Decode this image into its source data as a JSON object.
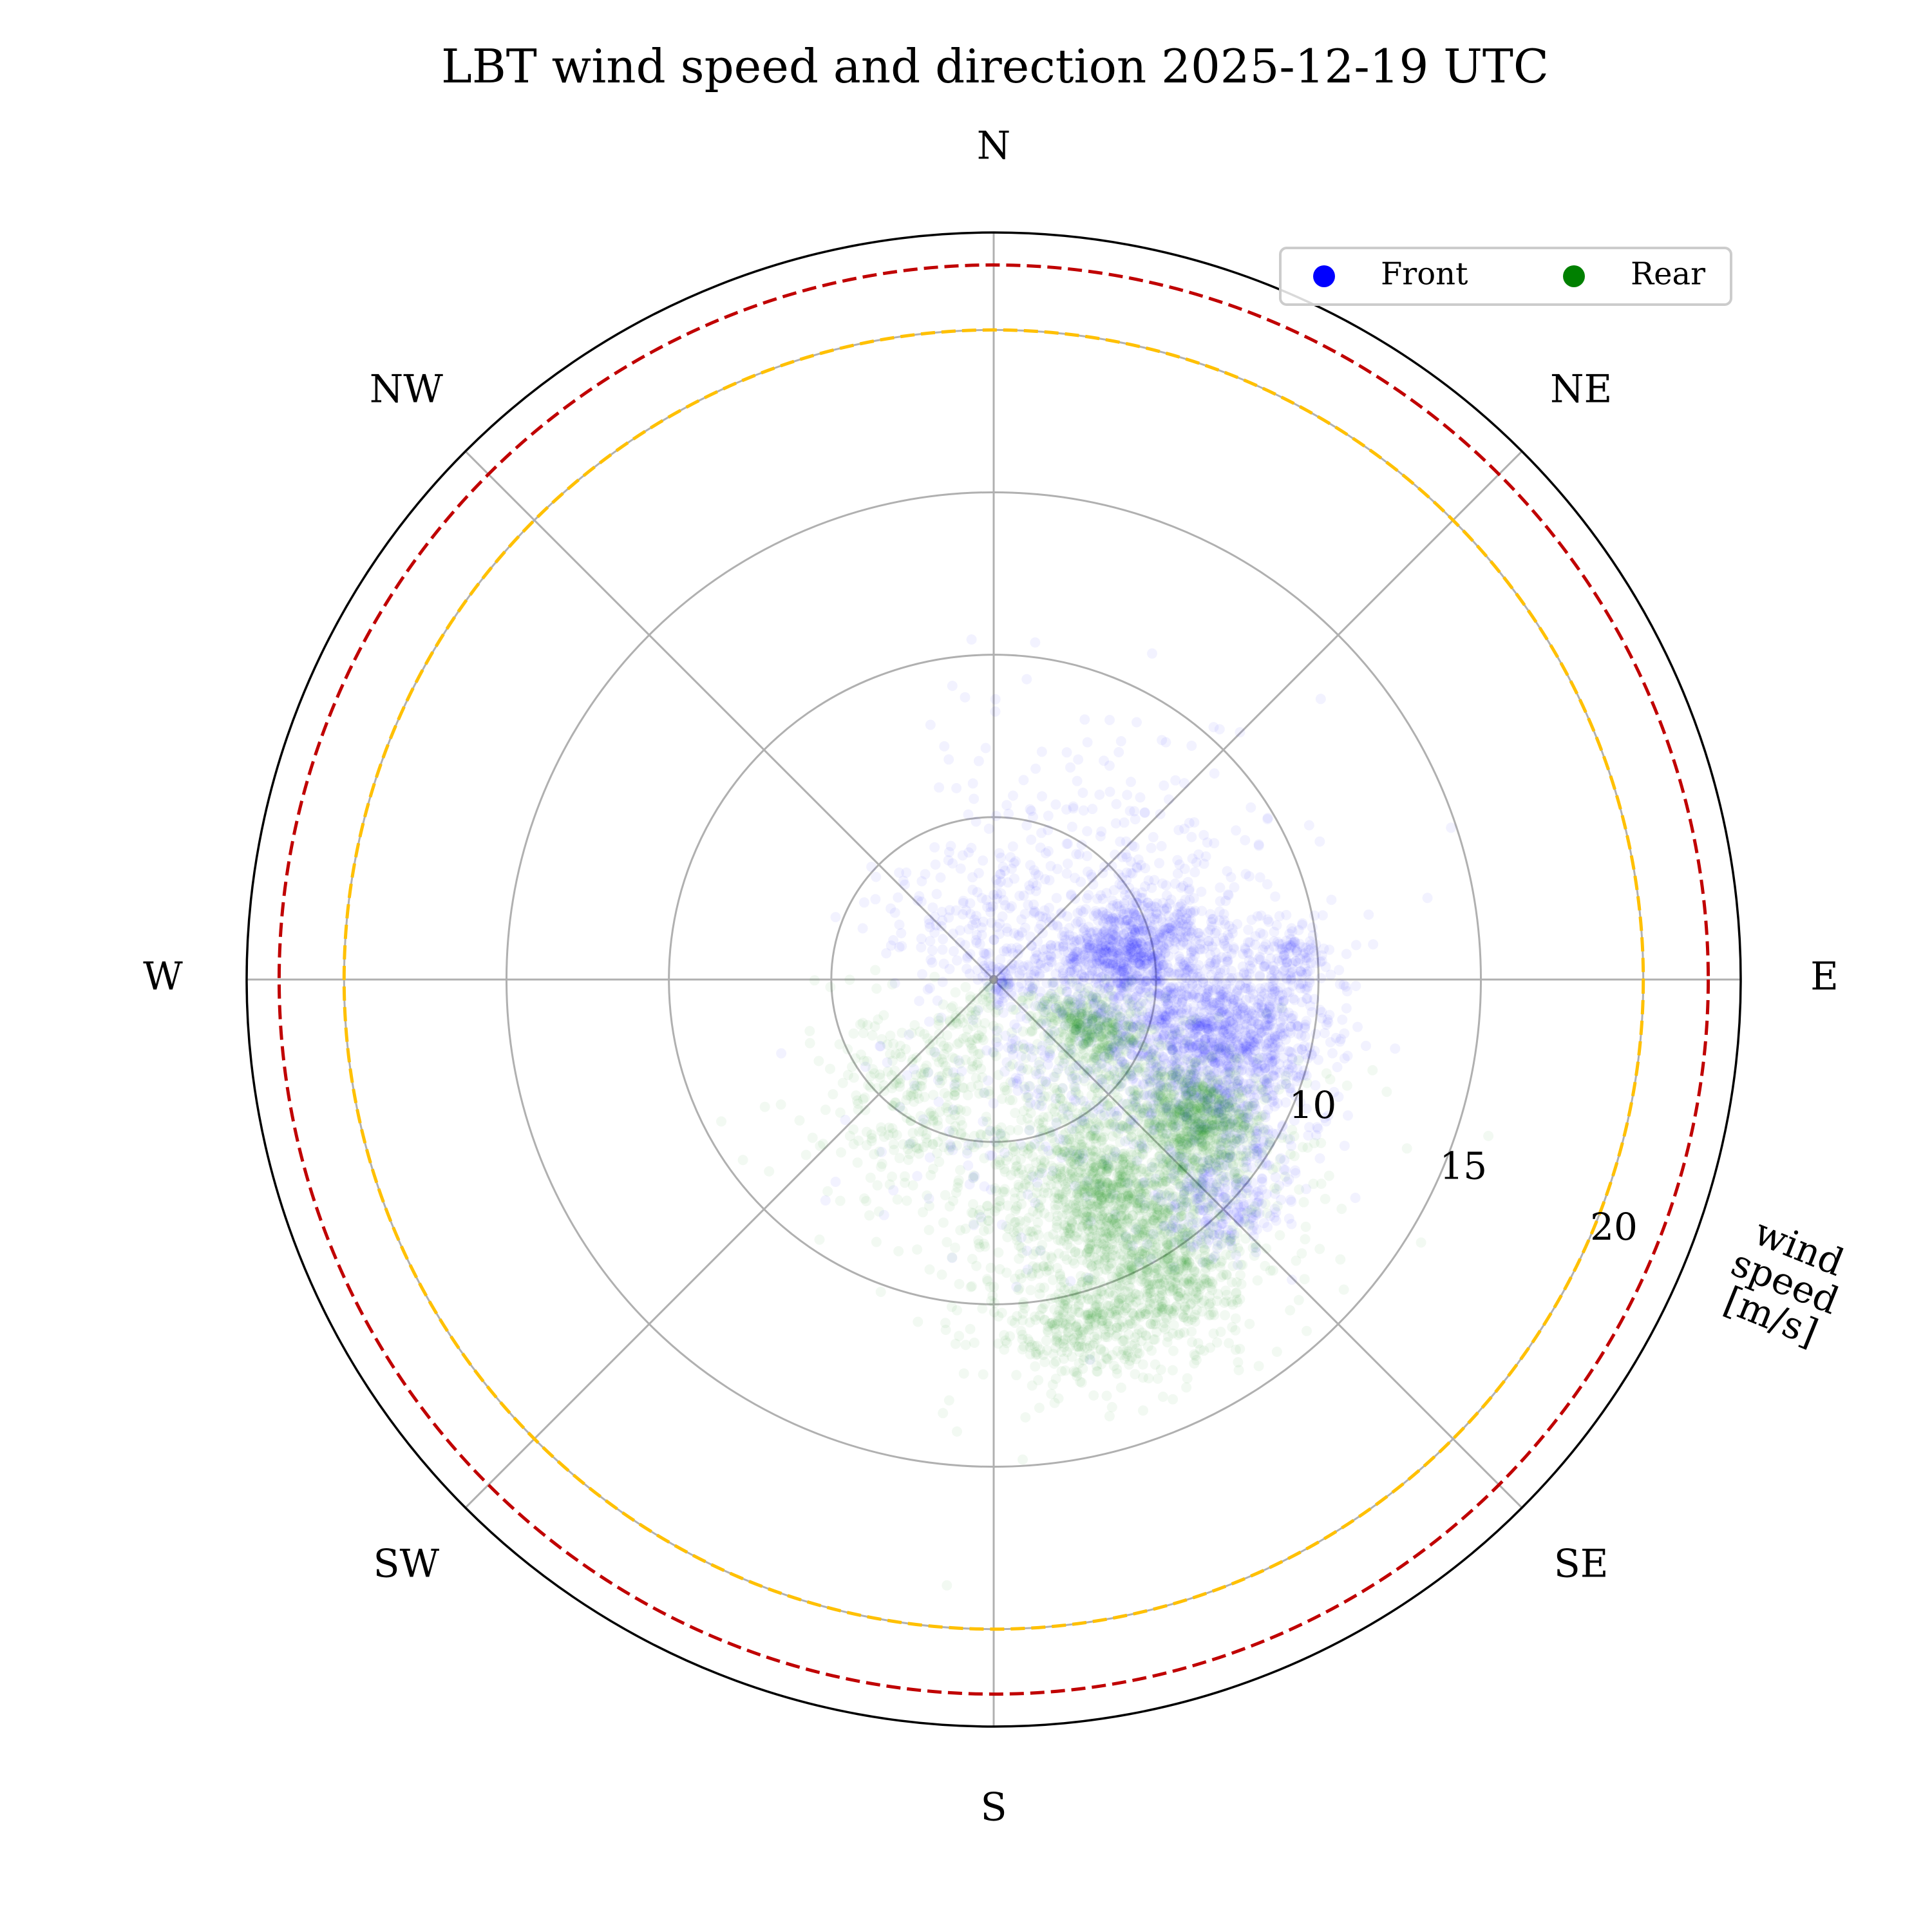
{
  "chart_data": {
    "type": "scatter",
    "coordinate_system": "polar",
    "title": "LBT wind speed and direction 2025-12-19 UTC",
    "radial_axis_label": "wind speed [m/s]",
    "radial_axis_label_lines": [
      "wind",
      "speed",
      "[m/s]"
    ],
    "radial_tick_labels": [
      "10",
      "15",
      "20"
    ],
    "radial_gridlines": [
      5,
      10,
      15,
      20
    ],
    "rlim": [
      0,
      23
    ],
    "angular_zero": "N",
    "angular_direction": "clockwise",
    "direction_labels": [
      {
        "label": "N",
        "deg": 0
      },
      {
        "label": "NE",
        "deg": 45
      },
      {
        "label": "E",
        "deg": 90
      },
      {
        "label": "SE",
        "deg": 135
      },
      {
        "label": "S",
        "deg": 180
      },
      {
        "label": "SW",
        "deg": 225
      },
      {
        "label": "W",
        "deg": 270
      },
      {
        "label": "NW",
        "deg": 315
      }
    ],
    "grid": true,
    "legend": {
      "placement": "top-right",
      "columns": 2
    },
    "reference_circles": [
      {
        "speed": 20,
        "color": "#ffc000",
        "style": "dashed"
      },
      {
        "speed": 22,
        "color": "#c00000",
        "style": "dashed"
      }
    ],
    "series": [
      {
        "name": "Front",
        "color": "#0000ff",
        "clusters": [
          {
            "dir_deg": 105,
            "speed": 7.3,
            "spread_deg": 12,
            "spread_speed": 1.6,
            "count": 1300
          },
          {
            "dir_deg": 76,
            "speed": 4.4,
            "spread_deg": 10,
            "spread_speed": 1.2,
            "count": 650
          },
          {
            "dir_deg": 86,
            "speed": 9.3,
            "spread_deg": 3,
            "spread_speed": 0.5,
            "count": 90
          },
          {
            "dir_deg": 133,
            "speed": 9.8,
            "spread_deg": 6,
            "spread_speed": 0.9,
            "count": 280
          },
          {
            "dir_deg": 100,
            "speed": 5.0,
            "spread_deg": 50,
            "spread_speed": 2.6,
            "count": 900
          },
          {
            "dir_deg": 345,
            "speed": 2.6,
            "spread_deg": 50,
            "spread_speed": 1.3,
            "count": 220
          }
        ]
      },
      {
        "name": "Rear",
        "color": "#008000",
        "clusters": [
          {
            "dir_deg": 125,
            "speed": 7.7,
            "spread_deg": 6,
            "spread_speed": 0.9,
            "count": 650
          },
          {
            "dir_deg": 117,
            "speed": 3.4,
            "spread_deg": 10,
            "spread_speed": 0.9,
            "count": 420
          },
          {
            "dir_deg": 153,
            "speed": 7.4,
            "spread_deg": 6,
            "spread_speed": 0.8,
            "count": 320
          },
          {
            "dir_deg": 150,
            "speed": 10.5,
            "spread_deg": 6,
            "spread_speed": 1.1,
            "count": 450
          },
          {
            "dir_deg": 165,
            "speed": 11.2,
            "spread_deg": 5,
            "spread_speed": 0.8,
            "count": 220
          },
          {
            "dir_deg": 150,
            "speed": 8.0,
            "spread_deg": 18,
            "spread_speed": 2.5,
            "count": 1400
          },
          {
            "dir_deg": 212,
            "speed": 4.5,
            "spread_deg": 22,
            "spread_speed": 2.0,
            "count": 380
          }
        ]
      }
    ]
  }
}
